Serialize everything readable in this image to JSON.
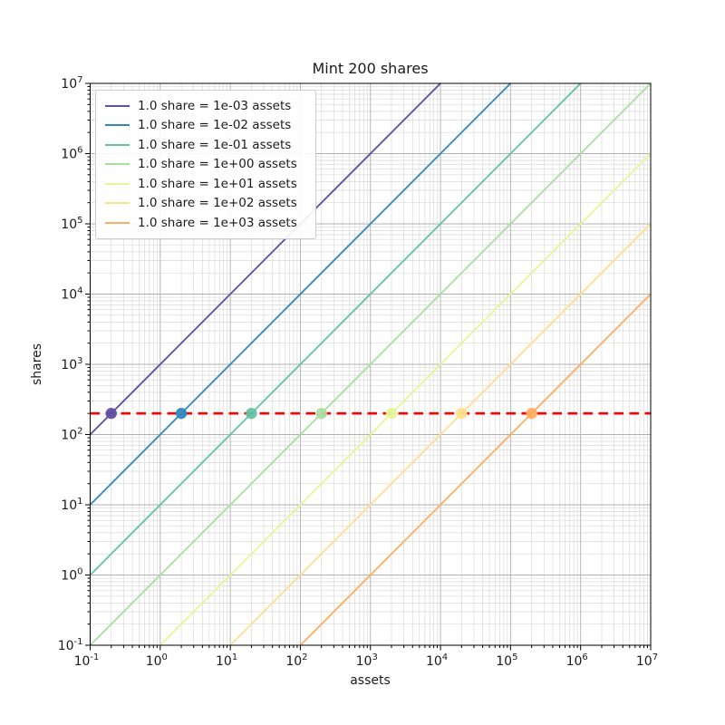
{
  "chart_data": {
    "type": "line",
    "title": "Mint 200 shares",
    "xlabel": "assets",
    "ylabel": "shares",
    "xscale": "log",
    "yscale": "log",
    "xlim": [
      0.1,
      10000000
    ],
    "ylim": [
      0.1,
      10000000
    ],
    "x_tick_exponents": [
      -1,
      0,
      1,
      2,
      3,
      4,
      5,
      6,
      7
    ],
    "y_tick_exponents": [
      -1,
      0,
      1,
      2,
      3,
      4,
      5,
      6,
      7
    ],
    "grid": "both",
    "legend_position": "upper left",
    "minted_shares": 200,
    "series": [
      {
        "label": "1.0 share = 1e-03 assets",
        "assets_per_share": 0.001,
        "color": "#5e4fa2",
        "marker_at": {
          "assets": 0.2,
          "shares": 200
        }
      },
      {
        "label": "1.0 share = 1e-02 assets",
        "assets_per_share": 0.01,
        "color": "#3288bd",
        "marker_at": {
          "assets": 2,
          "shares": 200
        }
      },
      {
        "label": "1.0 share = 1e-01 assets",
        "assets_per_share": 0.1,
        "color": "#66c2a5",
        "marker_at": {
          "assets": 20,
          "shares": 200
        }
      },
      {
        "label": "1.0 share = 1e+00 assets",
        "assets_per_share": 1,
        "color": "#abdda4",
        "marker_at": {
          "assets": 200,
          "shares": 200
        }
      },
      {
        "label": "1.0 share = 1e+01 assets",
        "assets_per_share": 10,
        "color": "#e6f598",
        "marker_at": {
          "assets": 2000,
          "shares": 200
        }
      },
      {
        "label": "1.0 share = 1e+02 assets",
        "assets_per_share": 100,
        "color": "#fee08b",
        "marker_at": {
          "assets": 20000,
          "shares": 200
        }
      },
      {
        "label": "1.0 share = 1e+03 assets",
        "assets_per_share": 1000,
        "color": "#fdae61",
        "marker_at": {
          "assets": 200000,
          "shares": 200
        }
      }
    ],
    "hline": {
      "shares": 200,
      "color": "#ff0000",
      "linestyle": "dashed"
    },
    "colors": {
      "grid_major": "#b0b0b0",
      "grid_minor": "#d9d9d9",
      "spine": "#000000",
      "text": "#1a1a1a"
    }
  }
}
